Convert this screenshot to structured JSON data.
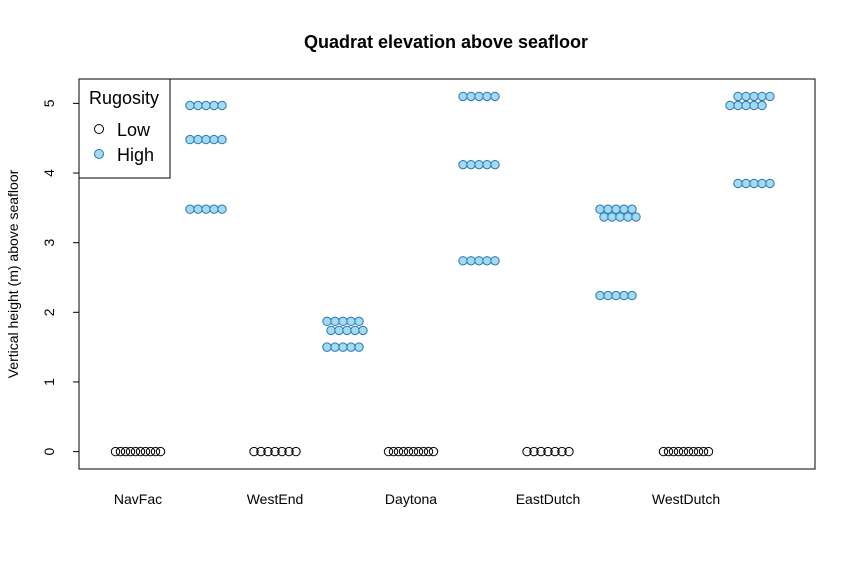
{
  "chart_data": {
    "type": "scatter",
    "title": "Quadrat elevation above seafloor",
    "xlabel": "",
    "ylabel": "Vertical height (m) above seafloor",
    "ylim": [
      -0.25,
      5.35
    ],
    "yticks": [
      0,
      1,
      2,
      3,
      4,
      5
    ],
    "categories": [
      "NavFac",
      "WestEnd",
      "Daytona",
      "EastDutch",
      "WestDutch"
    ],
    "legend": {
      "title": "Rugosity",
      "position": "top-left"
    },
    "series": [
      {
        "name": "Low",
        "color": "#000000",
        "fill": "none",
        "groups": [
          {
            "category": "NavFac",
            "rows": [
              {
                "y": 0,
                "n": 10
              }
            ]
          },
          {
            "category": "WestEnd",
            "rows": [
              {
                "y": 0,
                "n": 7
              }
            ]
          },
          {
            "category": "Daytona",
            "rows": [
              {
                "y": 0,
                "n": 10
              }
            ]
          },
          {
            "category": "EastDutch",
            "rows": [
              {
                "y": 0,
                "n": 7
              }
            ]
          },
          {
            "category": "WestDutch",
            "rows": [
              {
                "y": 0,
                "n": 10
              }
            ]
          }
        ]
      },
      {
        "name": "High",
        "color": "#1f78b4",
        "fill": "#a6d8f0",
        "groups": [
          {
            "category": "NavFac",
            "rows": [
              {
                "y": 4.97,
                "n": 5
              },
              {
                "y": 4.48,
                "n": 5
              },
              {
                "y": 3.48,
                "n": 5
              }
            ]
          },
          {
            "category": "WestEnd",
            "rows": [
              {
                "y": 1.87,
                "n": 5
              },
              {
                "y": 1.74,
                "n": 5
              },
              {
                "y": 1.5,
                "n": 5
              }
            ]
          },
          {
            "category": "Daytona",
            "rows": [
              {
                "y": 5.1,
                "n": 5
              },
              {
                "y": 4.12,
                "n": 5
              },
              {
                "y": 2.74,
                "n": 5
              }
            ]
          },
          {
            "category": "EastDutch",
            "rows": [
              {
                "y": 3.48,
                "n": 5
              },
              {
                "y": 3.37,
                "n": 5
              },
              {
                "y": 2.24,
                "n": 5
              }
            ]
          },
          {
            "category": "WestDutch",
            "rows": [
              {
                "y": 5.1,
                "n": 5
              },
              {
                "y": 4.97,
                "n": 5
              },
              {
                "y": 3.85,
                "n": 5
              }
            ]
          }
        ]
      }
    ]
  }
}
